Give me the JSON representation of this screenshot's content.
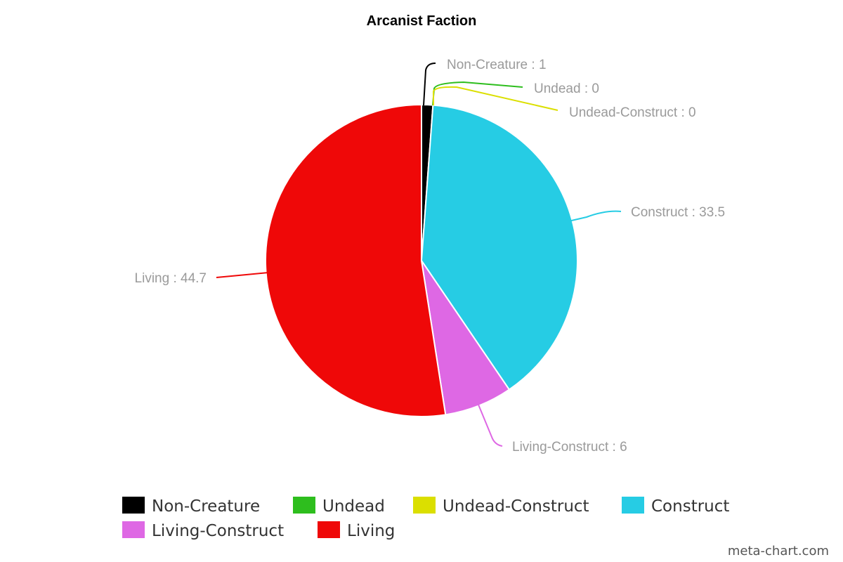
{
  "chart_data": {
    "type": "pie",
    "title": "Arcanist Faction",
    "categories": [
      "Non-Creature",
      "Undead",
      "Undead-Construct",
      "Construct",
      "Living-Construct",
      "Living"
    ],
    "values": [
      1,
      0,
      0,
      33.5,
      6,
      44.7
    ],
    "data_labels": [
      "Non-Creature : 1",
      "Undead : 0",
      "Undead-Construct : 0",
      "Construct : 33.5",
      "Living-Construct : 6",
      "Living : 44.7"
    ],
    "colors": [
      "#000000",
      "#2ebe1e",
      "#dbdf00",
      "#26cce4",
      "#de68e4",
      "#ef0808"
    ],
    "legend": {
      "placement": "bottom",
      "entries": [
        "Non-Creature",
        "Undead",
        "Undead-Construct",
        "Construct",
        "Living-Construct",
        "Living"
      ]
    },
    "start_angle_deg": 0,
    "direction": "clockwise"
  },
  "credit": "meta-chart.com"
}
